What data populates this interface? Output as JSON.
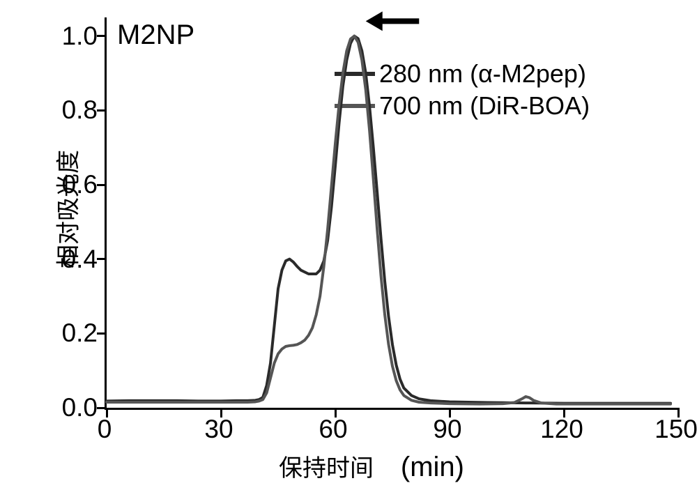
{
  "chart": {
    "type": "line",
    "title": "M2NP",
    "title_fontsize": 40,
    "xlabel_left": "保持时间",
    "xlabel_right": "(min)",
    "xlabel_fontsize_cjk": 34,
    "xlabel_fontsize_latin": 40,
    "ylabel": "相对吸光度",
    "ylabel_fontsize": 34,
    "tick_fontsize": 37,
    "xlim": [
      0,
      150
    ],
    "ylim": [
      0,
      1.05
    ],
    "xticks": [
      0,
      30,
      60,
      90,
      120,
      150
    ],
    "yticks": [
      0.0,
      0.2,
      0.4,
      0.6,
      0.8,
      1.0
    ],
    "ytick_labels": [
      "0.0",
      "0.2",
      "0.4",
      "0.6",
      "0.8",
      "1.0"
    ],
    "plot_background": "#ffffff",
    "axis_color": "#000000",
    "axis_width": 3,
    "series": [
      {
        "name": "280 nm (α-M2pep)",
        "color": "#2a2a2a",
        "line_width": 4,
        "points": [
          [
            0,
            0.018
          ],
          [
            6,
            0.019
          ],
          [
            12,
            0.019
          ],
          [
            18,
            0.019
          ],
          [
            24,
            0.018
          ],
          [
            30,
            0.018
          ],
          [
            34,
            0.019
          ],
          [
            37,
            0.019
          ],
          [
            39,
            0.02
          ],
          [
            40,
            0.022
          ],
          [
            41,
            0.028
          ],
          [
            42,
            0.06
          ],
          [
            43,
            0.12
          ],
          [
            43.5,
            0.17
          ],
          [
            44,
            0.22
          ],
          [
            45,
            0.32
          ],
          [
            46,
            0.37
          ],
          [
            47,
            0.395
          ],
          [
            48,
            0.4
          ],
          [
            49,
            0.392
          ],
          [
            50,
            0.38
          ],
          [
            51,
            0.37
          ],
          [
            53,
            0.36
          ],
          [
            55,
            0.36
          ],
          [
            56,
            0.37
          ],
          [
            57,
            0.395
          ],
          [
            58,
            0.45
          ],
          [
            59,
            0.54
          ],
          [
            60,
            0.65
          ],
          [
            61,
            0.765
          ],
          [
            62,
            0.865
          ],
          [
            63,
            0.935
          ],
          [
            64,
            0.98
          ],
          [
            65,
            1.0
          ],
          [
            66,
            0.993
          ],
          [
            67,
            0.96
          ],
          [
            68,
            0.9
          ],
          [
            69,
            0.81
          ],
          [
            70,
            0.7
          ],
          [
            71,
            0.58
          ],
          [
            72,
            0.455
          ],
          [
            73,
            0.34
          ],
          [
            74,
            0.245
          ],
          [
            75,
            0.17
          ],
          [
            76,
            0.115
          ],
          [
            77,
            0.077
          ],
          [
            78,
            0.053
          ],
          [
            80,
            0.033
          ],
          [
            82,
            0.024
          ],
          [
            85,
            0.019
          ],
          [
            90,
            0.016
          ],
          [
            100,
            0.014
          ],
          [
            110,
            0.013
          ],
          [
            120,
            0.012
          ],
          [
            130,
            0.012
          ],
          [
            140,
            0.012
          ],
          [
            148,
            0.012
          ]
        ]
      },
      {
        "name": "700 nm (DiR-BOA)",
        "color": "#555555",
        "line_width": 4,
        "points": [
          [
            0,
            0.015
          ],
          [
            6,
            0.015
          ],
          [
            12,
            0.015
          ],
          [
            18,
            0.015
          ],
          [
            24,
            0.015
          ],
          [
            30,
            0.015
          ],
          [
            34,
            0.015
          ],
          [
            37,
            0.015
          ],
          [
            39,
            0.016
          ],
          [
            40,
            0.018
          ],
          [
            41,
            0.022
          ],
          [
            42,
            0.04
          ],
          [
            43,
            0.08
          ],
          [
            44,
            0.12
          ],
          [
            45,
            0.145
          ],
          [
            46,
            0.158
          ],
          [
            47,
            0.165
          ],
          [
            48,
            0.167
          ],
          [
            49,
            0.168
          ],
          [
            50,
            0.17
          ],
          [
            51,
            0.175
          ],
          [
            52,
            0.182
          ],
          [
            53,
            0.195
          ],
          [
            54,
            0.215
          ],
          [
            55,
            0.25
          ],
          [
            56,
            0.3
          ],
          [
            57,
            0.38
          ],
          [
            58,
            0.48
          ],
          [
            59,
            0.595
          ],
          [
            60,
            0.71
          ],
          [
            61,
            0.815
          ],
          [
            62,
            0.9
          ],
          [
            63,
            0.96
          ],
          [
            64,
            0.992
          ],
          [
            65,
            1.0
          ],
          [
            66,
            0.983
          ],
          [
            67,
            0.935
          ],
          [
            68,
            0.855
          ],
          [
            69,
            0.745
          ],
          [
            70,
            0.615
          ],
          [
            71,
            0.48
          ],
          [
            72,
            0.355
          ],
          [
            73,
            0.25
          ],
          [
            74,
            0.17
          ],
          [
            75,
            0.112
          ],
          [
            76,
            0.073
          ],
          [
            77,
            0.048
          ],
          [
            78,
            0.033
          ],
          [
            80,
            0.02
          ],
          [
            82,
            0.015
          ],
          [
            85,
            0.013
          ],
          [
            90,
            0.011
          ],
          [
            98,
            0.01
          ],
          [
            104,
            0.011
          ],
          [
            107,
            0.014
          ],
          [
            109,
            0.024
          ],
          [
            110,
            0.03
          ],
          [
            111,
            0.027
          ],
          [
            112,
            0.02
          ],
          [
            114,
            0.013
          ],
          [
            118,
            0.01
          ],
          [
            125,
            0.01
          ],
          [
            135,
            0.01
          ],
          [
            148,
            0.01
          ]
        ]
      }
    ],
    "legend": {
      "fontsize": 36,
      "swatch_width": 58,
      "swatch_height": 6,
      "items": [
        {
          "label": "280 nm (α-M2pep)",
          "color": "#2a2a2a"
        },
        {
          "label": "700 nm (DiR-BOA)",
          "color": "#555555"
        }
      ]
    },
    "arrow": {
      "tip_x": 68,
      "tip_y": 1.04,
      "tail_x": 82,
      "tail_y": 1.04,
      "color": "#000000",
      "shaft_width": 8,
      "head_len": 24,
      "head_w": 28
    }
  }
}
